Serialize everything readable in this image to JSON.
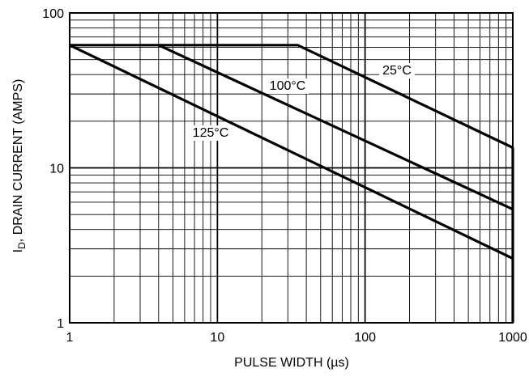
{
  "chart_data": {
    "type": "line",
    "x_scale": "log",
    "y_scale": "log",
    "xlim": [
      1,
      1000
    ],
    "ylim": [
      1,
      100
    ],
    "grid": true,
    "xlabel": "PULSE WIDTH (µs)",
    "ylabel_main": "I",
    "ylabel_sub": "D",
    "ylabel_rest": ", DRAIN CURRENT (AMPS)",
    "x_ticks": [
      {
        "value": 1,
        "label": "1"
      },
      {
        "value": 10,
        "label": "10"
      },
      {
        "value": 100,
        "label": "100"
      },
      {
        "value": 1000,
        "label": "1000"
      }
    ],
    "y_ticks": [
      {
        "value": 1,
        "label": "1"
      },
      {
        "value": 10,
        "label": "10"
      },
      {
        "value": 100,
        "label": "100"
      }
    ],
    "series": [
      {
        "name": "25°C",
        "points": [
          [
            1,
            62
          ],
          [
            35,
            62
          ],
          [
            1000,
            13.5
          ]
        ],
        "label_at": [
          490,
          92
        ]
      },
      {
        "name": "100°C",
        "points": [
          [
            4,
            62
          ],
          [
            1000,
            5.4
          ]
        ],
        "label_at": [
          355,
          111
        ]
      },
      {
        "name": "125°C",
        "points": [
          [
            1,
            62
          ],
          [
            1000,
            2.6
          ]
        ],
        "label_at": [
          260,
          169
        ]
      }
    ]
  }
}
